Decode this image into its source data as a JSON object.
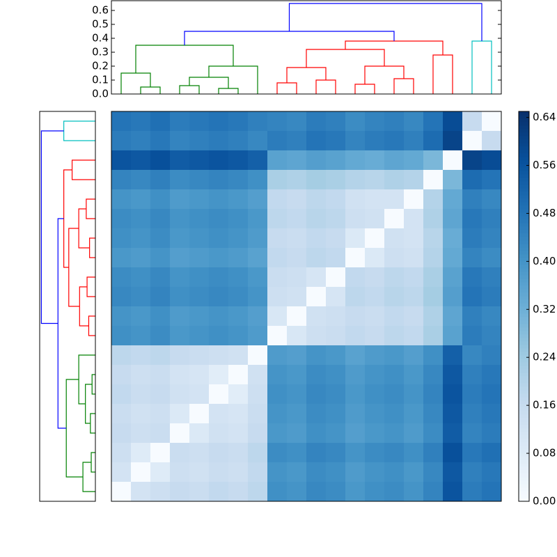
{
  "chart_data": [
    {
      "type": "dendrogram",
      "orientation": "top",
      "ylim": [
        0,
        0.67
      ],
      "yticks": [
        {
          "value": 0,
          "label": "0.0"
        },
        0.1,
        0.2,
        0.3,
        0.4,
        0.5,
        0.6
      ],
      "merges": [
        [
          1,
          2,
          0.05
        ],
        [
          3,
          4,
          0.06
        ],
        [
          5,
          6,
          0.04
        ],
        [
          21,
          22,
          0.12
        ],
        [
          0,
          20,
          0.15
        ],
        [
          23,
          7,
          0.2
        ],
        [
          24,
          25,
          0.35
        ],
        [
          8,
          9,
          0.08
        ],
        [
          10,
          11,
          0.1
        ],
        [
          27,
          28,
          0.19
        ],
        [
          12,
          13,
          0.07
        ],
        [
          14,
          15,
          0.11
        ],
        [
          30,
          31,
          0.2
        ],
        [
          29,
          32,
          0.32
        ],
        [
          16,
          17,
          0.28
        ],
        [
          33,
          34,
          0.38
        ],
        [
          26,
          35,
          0.45
        ],
        [
          18,
          19,
          0.38
        ],
        [
          36,
          37,
          0.65
        ]
      ],
      "colors": [
        "#008000",
        "#008000",
        "#008000",
        "#008000",
        "#008000",
        "#008000",
        "#008000",
        "#ff0000",
        "#ff0000",
        "#ff0000",
        "#ff0000",
        "#ff0000",
        "#ff0000",
        "#ff0000",
        "#ff0000",
        "#ff0000",
        "#0000ff",
        "#00bfbf",
        "#0000ff"
      ]
    },
    {
      "type": "dendrogram",
      "orientation": "left",
      "xlim": [
        0.67,
        0
      ],
      "merges": [
        [
          1,
          2,
          0.05
        ],
        [
          3,
          4,
          0.06
        ],
        [
          5,
          6,
          0.04
        ],
        [
          21,
          22,
          0.12
        ],
        [
          0,
          20,
          0.15
        ],
        [
          23,
          7,
          0.2
        ],
        [
          24,
          25,
          0.35
        ],
        [
          8,
          9,
          0.08
        ],
        [
          10,
          11,
          0.1
        ],
        [
          27,
          28,
          0.19
        ],
        [
          12,
          13,
          0.07
        ],
        [
          14,
          15,
          0.11
        ],
        [
          30,
          31,
          0.2
        ],
        [
          29,
          32,
          0.32
        ],
        [
          16,
          17,
          0.28
        ],
        [
          33,
          34,
          0.38
        ],
        [
          26,
          35,
          0.45
        ],
        [
          18,
          19,
          0.38
        ],
        [
          36,
          37,
          0.65
        ]
      ],
      "colors": [
        "#008000",
        "#008000",
        "#008000",
        "#008000",
        "#008000",
        "#008000",
        "#008000",
        "#ff0000",
        "#ff0000",
        "#ff0000",
        "#ff0000",
        "#ff0000",
        "#ff0000",
        "#ff0000",
        "#ff0000",
        "#ff0000",
        "#0000ff",
        "#00bfbf",
        "#0000ff"
      ]
    },
    {
      "type": "heatmap",
      "vlim": [
        0,
        0.65
      ],
      "colormap": [
        "#f7fbff",
        "#deebf7",
        "#c6dbef",
        "#9ecae1",
        "#6baed6",
        "#4292c6",
        "#2171b5",
        "#08519c",
        "#08306b"
      ],
      "cticks": [
        {
          "value": 0,
          "label": "0.00"
        },
        {
          "value": 0.08,
          "label": "0.08"
        },
        {
          "value": 0.16,
          "label": "0.16"
        },
        {
          "value": 0.24,
          "label": "0.24"
        },
        {
          "value": 0.32,
          "label": "0.32"
        },
        {
          "value": 0.4,
          "label": "0.40"
        },
        {
          "value": 0.48,
          "label": "0.48"
        },
        {
          "value": 0.56,
          "label": "0.56"
        },
        {
          "value": 0.64,
          "label": "0.64"
        }
      ],
      "values": [
        [
          0.48,
          0.47,
          0.49,
          0.46,
          0.47,
          0.48,
          0.47,
          0.45,
          0.44,
          0.43,
          0.46,
          0.45,
          0.42,
          0.44,
          0.45,
          0.43,
          0.48,
          0.58,
          0.16,
          0
        ],
        [
          0.46,
          0.45,
          0.47,
          0.44,
          0.45,
          0.46,
          0.45,
          0.43,
          0.46,
          0.45,
          0.48,
          0.47,
          0.44,
          0.46,
          0.47,
          0.45,
          0.5,
          0.6,
          0,
          0.16
        ],
        [
          0.56,
          0.55,
          0.57,
          0.54,
          0.55,
          0.56,
          0.55,
          0.53,
          0.36,
          0.35,
          0.37,
          0.36,
          0.34,
          0.33,
          0.35,
          0.34,
          0.3,
          0,
          0.6,
          0.58
        ],
        [
          0.44,
          0.43,
          0.45,
          0.42,
          0.43,
          0.44,
          0.43,
          0.41,
          0.22,
          0.21,
          0.23,
          0.22,
          0.2,
          0.19,
          0.21,
          0.2,
          0,
          0.3,
          0.5,
          0.48
        ],
        [
          0.4,
          0.39,
          0.41,
          0.38,
          0.39,
          0.4,
          0.39,
          0.37,
          0.17,
          0.16,
          0.18,
          0.17,
          0.13,
          0.12,
          0.12,
          0,
          0.2,
          0.34,
          0.45,
          0.43
        ],
        [
          0.42,
          0.41,
          0.43,
          0.4,
          0.41,
          0.42,
          0.41,
          0.39,
          0.18,
          0.17,
          0.19,
          0.18,
          0.14,
          0.13,
          0,
          0.12,
          0.21,
          0.35,
          0.47,
          0.45
        ],
        [
          0.41,
          0.4,
          0.42,
          0.39,
          0.4,
          0.41,
          0.4,
          0.38,
          0.16,
          0.15,
          0.17,
          0.16,
          0.09,
          0,
          0.13,
          0.12,
          0.19,
          0.33,
          0.46,
          0.44
        ],
        [
          0.39,
          0.38,
          0.4,
          0.37,
          0.38,
          0.39,
          0.38,
          0.36,
          0.17,
          0.16,
          0.18,
          0.17,
          0,
          0.09,
          0.14,
          0.13,
          0.2,
          0.34,
          0.44,
          0.42
        ],
        [
          0.42,
          0.41,
          0.43,
          0.4,
          0.41,
          0.42,
          0.41,
          0.39,
          0.15,
          0.14,
          0.11,
          0,
          0.17,
          0.16,
          0.18,
          0.17,
          0.22,
          0.36,
          0.47,
          0.45
        ],
        [
          0.43,
          0.42,
          0.44,
          0.41,
          0.42,
          0.43,
          0.42,
          0.4,
          0.14,
          0.13,
          0,
          0.11,
          0.18,
          0.17,
          0.19,
          0.18,
          0.23,
          0.37,
          0.48,
          0.46
        ],
        [
          0.4,
          0.39,
          0.41,
          0.38,
          0.39,
          0.4,
          0.39,
          0.37,
          0.1,
          0,
          0.13,
          0.14,
          0.16,
          0.15,
          0.17,
          0.16,
          0.21,
          0.35,
          0.45,
          0.43
        ],
        [
          0.41,
          0.4,
          0.42,
          0.39,
          0.4,
          0.41,
          0.4,
          0.38,
          0,
          0.1,
          0.14,
          0.15,
          0.17,
          0.16,
          0.18,
          0.17,
          0.22,
          0.36,
          0.46,
          0.44
        ],
        [
          0.18,
          0.17,
          0.18,
          0.16,
          0.15,
          0.14,
          0.13,
          0,
          0.38,
          0.37,
          0.4,
          0.39,
          0.36,
          0.38,
          0.39,
          0.37,
          0.41,
          0.53,
          0.43,
          0.45
        ],
        [
          0.16,
          0.14,
          0.15,
          0.12,
          0.11,
          0.07,
          0,
          0.13,
          0.4,
          0.39,
          0.42,
          0.41,
          0.38,
          0.4,
          0.41,
          0.39,
          0.43,
          0.55,
          0.45,
          0.47
        ],
        [
          0.17,
          0.15,
          0.16,
          0.13,
          0.12,
          0,
          0.07,
          0.14,
          0.41,
          0.4,
          0.43,
          0.42,
          0.39,
          0.41,
          0.42,
          0.4,
          0.44,
          0.56,
          0.46,
          0.48
        ],
        [
          0.15,
          0.13,
          0.14,
          0.09,
          0,
          0.12,
          0.11,
          0.15,
          0.4,
          0.39,
          0.42,
          0.41,
          0.38,
          0.4,
          0.41,
          0.39,
          0.43,
          0.55,
          0.45,
          0.47
        ],
        [
          0.16,
          0.14,
          0.15,
          0,
          0.09,
          0.13,
          0.12,
          0.16,
          0.39,
          0.38,
          0.41,
          0.4,
          0.37,
          0.39,
          0.4,
          0.38,
          0.42,
          0.54,
          0.44,
          0.46
        ],
        [
          0.14,
          0.08,
          0,
          0.15,
          0.14,
          0.16,
          0.15,
          0.18,
          0.42,
          0.41,
          0.44,
          0.43,
          0.4,
          0.42,
          0.43,
          0.41,
          0.45,
          0.57,
          0.47,
          0.49
        ],
        [
          0.12,
          0,
          0.08,
          0.14,
          0.13,
          0.15,
          0.14,
          0.17,
          0.4,
          0.39,
          0.42,
          0.41,
          0.38,
          0.4,
          0.41,
          0.39,
          0.43,
          0.55,
          0.45,
          0.47
        ],
        [
          0,
          0.12,
          0.14,
          0.16,
          0.15,
          0.17,
          0.16,
          0.18,
          0.41,
          0.4,
          0.43,
          0.42,
          0.39,
          0.41,
          0.42,
          0.4,
          0.44,
          0.56,
          0.46,
          0.48
        ]
      ]
    }
  ]
}
